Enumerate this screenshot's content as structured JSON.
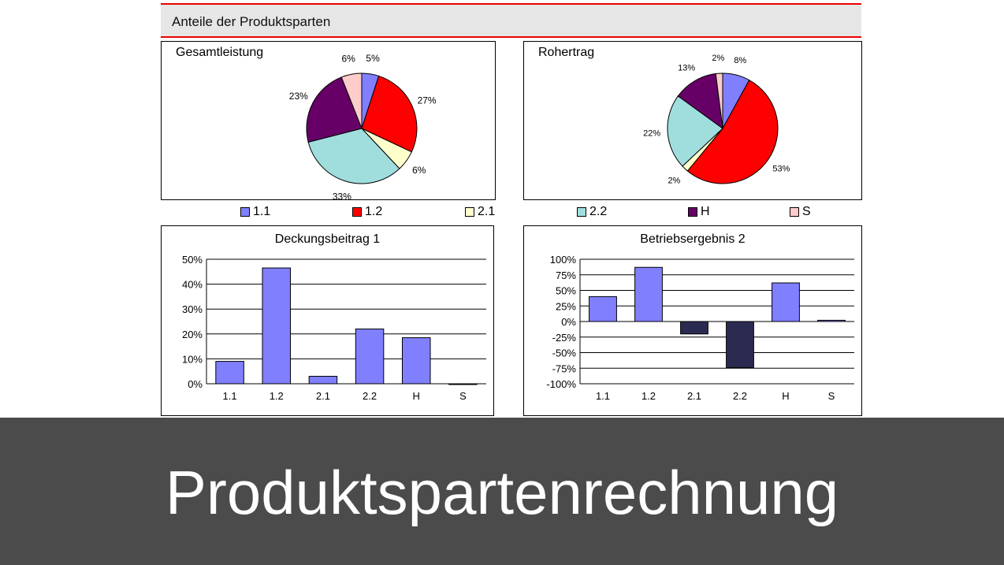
{
  "header": {
    "title": "Anteile der Produktsparten"
  },
  "colors": {
    "1.1": "#8080ff",
    "1.2": "#ff0000",
    "2.1": "#ffffcc",
    "2.2": "#a0dede",
    "H": "#660066",
    "S": "#ffcccc",
    "bar_pos": "#8080ff",
    "bar_neg": "#2b2b52"
  },
  "overlay": {
    "caption": "Produktspartenrechnung"
  },
  "legend": [
    "1.1",
    "1.2",
    "2.1",
    "2.2",
    "H",
    "S"
  ],
  "chart_data": [
    {
      "type": "pie",
      "title": "Gesamtleistung",
      "categories": [
        "1.1",
        "1.2",
        "2.1",
        "2.2",
        "H",
        "S"
      ],
      "values": [
        5,
        27,
        6,
        33,
        23,
        6
      ],
      "labels": [
        "5%",
        "27%",
        "6%",
        "33%",
        "23%",
        "6%"
      ]
    },
    {
      "type": "pie",
      "title": "Rohertrag",
      "categories": [
        "1.1",
        "1.2",
        "2.1",
        "2.2",
        "H",
        "S"
      ],
      "values": [
        8,
        53,
        2,
        22,
        13,
        2
      ],
      "labels": [
        "8%",
        "53%",
        "2%",
        "22%",
        "13%",
        "2%"
      ]
    },
    {
      "type": "bar",
      "title": "Deckungsbeitrag 1",
      "categories": [
        "1.1",
        "1.2",
        "2.1",
        "2.2",
        "H",
        "S"
      ],
      "values": [
        9,
        46.5,
        3,
        22,
        18.5,
        0
      ],
      "ylim": [
        0,
        50
      ],
      "yticks": [
        "0%",
        "10%",
        "20%",
        "30%",
        "40%",
        "50%"
      ],
      "grid": true
    },
    {
      "type": "bar",
      "title": "Betriebsergebnis 2",
      "categories": [
        "1.1",
        "1.2",
        "2.1",
        "2.2",
        "H",
        "S"
      ],
      "values": [
        40,
        87,
        -20,
        -74,
        62,
        2
      ],
      "ylim": [
        -100,
        100
      ],
      "yticks": [
        "-100%",
        "-75%",
        "-50%",
        "-25%",
        "0%",
        "25%",
        "50%",
        "75%",
        "100%"
      ],
      "grid": true
    }
  ]
}
